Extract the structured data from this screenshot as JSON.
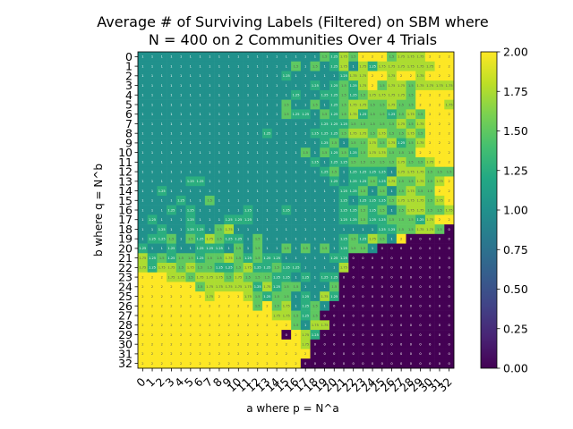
{
  "chart_data": {
    "type": "heatmap",
    "title_line1": "Average # of Surviving Labels (Filtered) on SBM where",
    "title_line2": "N = 400 on 2 Communities Over 4 Trials",
    "xlabel": "a where p = N^a",
    "ylabel": "b where q = N^b",
    "x": [
      "0",
      "1",
      "2",
      "3",
      "4",
      "5",
      "6",
      "7",
      "8",
      "9",
      "10",
      "11",
      "12",
      "13",
      "14",
      "15",
      "16",
      "17",
      "18",
      "19",
      "20",
      "21",
      "22",
      "23",
      "24",
      "25",
      "26",
      "27",
      "28",
      "29",
      "30",
      "31",
      "32"
    ],
    "y": [
      "0",
      "1",
      "2",
      "3",
      "4",
      "5",
      "6",
      "7",
      "8",
      "9",
      "10",
      "11",
      "12",
      "13",
      "14",
      "15",
      "16",
      "17",
      "18",
      "19",
      "20",
      "21",
      "22",
      "23",
      "24",
      "25",
      "26",
      "27",
      "28",
      "29",
      "30",
      "31",
      "32"
    ],
    "colorbar": {
      "colormap": "viridis",
      "range": [
        0.0,
        2.0
      ],
      "ticks": [
        "0.00",
        "0.25",
        "0.50",
        "0.75",
        "1.00",
        "1.25",
        "1.50",
        "1.75",
        "2.00"
      ]
    },
    "cell_annotations": true,
    "values": [
      [
        1,
        1,
        1,
        1,
        1,
        1,
        1,
        1,
        1,
        1,
        1,
        1,
        1,
        1,
        1,
        1,
        1,
        1,
        1,
        1.5,
        1.25,
        1.75,
        1.5,
        2,
        2,
        2,
        1.5,
        1.75,
        1.75,
        1.75,
        2,
        2,
        2
      ],
      [
        1,
        1,
        1,
        1,
        1,
        1,
        1,
        1,
        1,
        1,
        1,
        1,
        1,
        1,
        1,
        1,
        1.5,
        1,
        1.5,
        1,
        1.25,
        1.75,
        1,
        1.75,
        1.25,
        1.75,
        1.75,
        1.75,
        1.75,
        1.75,
        1.75,
        2,
        2
      ],
      [
        1,
        1,
        1,
        1,
        1,
        1,
        1,
        1,
        1,
        1,
        1,
        1,
        1,
        1,
        1,
        1.25,
        1,
        1,
        1,
        1,
        1,
        1.25,
        1.75,
        1.75,
        2,
        2,
        1.75,
        2,
        2,
        1.75,
        2,
        2,
        2
      ],
      [
        1,
        1,
        1,
        1,
        1,
        1,
        1,
        1,
        1,
        1,
        1,
        1,
        1,
        1,
        1,
        1,
        1,
        1,
        1.25,
        1,
        1.25,
        1.5,
        1.25,
        1.75,
        2,
        1.5,
        1.75,
        1.75,
        1.5,
        1.75,
        1.75,
        1.75,
        1.75
      ],
      [
        1,
        1,
        1,
        1,
        1,
        1,
        1,
        1,
        1,
        1,
        1,
        1,
        1,
        1,
        1,
        1,
        1.25,
        1,
        1,
        1.25,
        1.25,
        1.5,
        1.25,
        1.5,
        1.75,
        1.75,
        1.75,
        1.75,
        1.5,
        2,
        2,
        2,
        2
      ],
      [
        1,
        1,
        1,
        1,
        1,
        1,
        1,
        1,
        1,
        1,
        1,
        1,
        1,
        1,
        1,
        1.5,
        1,
        1,
        1.5,
        1,
        1.25,
        1.5,
        1.75,
        1.75,
        1.5,
        1.5,
        1.75,
        1.5,
        1.5,
        2,
        2,
        2,
        1.75
      ],
      [
        1,
        1,
        1,
        1,
        1,
        1,
        1,
        1,
        1,
        1,
        1,
        1,
        1,
        1,
        1,
        1.5,
        1.25,
        1.25,
        1,
        1.5,
        1.25,
        1.5,
        1.75,
        1.25,
        1.5,
        1.5,
        1.25,
        1.5,
        1.75,
        1.5,
        2,
        2,
        2
      ],
      [
        1,
        1,
        1,
        1,
        1,
        1,
        1,
        1,
        1,
        1,
        1,
        1,
        1,
        1,
        1,
        1,
        1,
        1,
        1,
        1.25,
        1.25,
        1.25,
        1.5,
        1.5,
        1.5,
        1.5,
        1.5,
        1.75,
        1.5,
        1.75,
        2,
        2,
        2
      ],
      [
        1,
        1,
        1,
        1,
        1,
        1,
        1,
        1,
        1,
        1,
        1,
        1,
        1,
        1.25,
        1,
        1,
        1,
        1,
        1.25,
        1.25,
        1.25,
        1.5,
        1.75,
        1.75,
        1.5,
        1.75,
        1.5,
        1.5,
        1.75,
        1.5,
        2,
        2,
        2
      ],
      [
        1,
        1,
        1,
        1,
        1,
        1,
        1,
        1,
        1,
        1,
        1,
        1,
        1,
        1,
        1,
        1,
        1,
        1,
        1,
        1.25,
        1.5,
        1,
        1.5,
        1.5,
        1.75,
        1.5,
        1.75,
        1.25,
        1.5,
        1.75,
        2,
        2,
        2
      ],
      [
        1,
        1,
        1,
        1,
        1,
        1,
        1,
        1,
        1,
        1,
        1,
        1,
        1,
        1,
        1,
        1,
        1,
        1.5,
        1,
        1.5,
        1.25,
        1.5,
        1.25,
        1.5,
        1.75,
        1.75,
        1.5,
        1.5,
        1.5,
        2,
        2,
        2,
        2
      ],
      [
        1,
        1,
        1,
        1,
        1,
        1,
        1,
        1,
        1,
        1,
        1,
        1,
        1,
        1,
        1,
        1,
        1,
        1,
        1.25,
        1,
        1.25,
        1.25,
        1.5,
        1.5,
        1.5,
        1.5,
        1.5,
        1.75,
        1.5,
        1.5,
        1.75,
        2,
        2
      ],
      [
        1,
        1,
        1,
        1,
        1,
        1,
        1,
        1,
        1,
        1,
        1,
        1,
        1,
        1,
        1,
        1,
        1,
        1,
        1,
        1.25,
        1.5,
        1,
        1.25,
        1.25,
        1.25,
        1.25,
        1,
        1.75,
        1.75,
        1.75,
        1.5,
        1.5,
        1.5
      ],
      [
        1,
        1,
        1,
        1,
        1,
        1.25,
        1.25,
        1,
        1,
        1,
        1,
        1,
        1,
        1,
        1,
        1,
        1,
        1,
        1,
        1,
        1.25,
        1,
        1.25,
        1.25,
        1.5,
        1.25,
        1.75,
        1.5,
        1.5,
        1.75,
        1.5,
        1.75,
        2
      ],
      [
        1,
        1,
        1.25,
        1,
        1,
        1,
        1,
        1,
        1,
        1,
        1,
        1,
        1,
        1,
        1,
        1,
        1,
        1,
        1,
        1,
        1,
        1.25,
        1.25,
        1.5,
        1,
        1.5,
        1,
        1.5,
        1.75,
        1.5,
        1.5,
        2,
        2
      ],
      [
        1,
        1,
        1,
        1,
        1.25,
        1,
        1,
        1.5,
        1,
        1,
        1,
        1,
        1,
        1,
        1,
        1,
        1,
        1,
        1,
        1,
        1,
        1.25,
        1,
        1.25,
        1.25,
        1.25,
        1.5,
        1.75,
        1.75,
        1.75,
        1.5,
        1.75,
        2
      ],
      [
        1,
        1,
        1,
        1.25,
        1,
        1.25,
        1,
        1,
        1,
        1,
        1,
        1.25,
        1,
        1,
        1,
        1.25,
        1,
        1,
        1,
        1,
        1,
        1.25,
        1.25,
        1.5,
        1.25,
        1.5,
        1,
        1.5,
        1.75,
        1.75,
        1.5,
        1.5,
        1.75
      ],
      [
        1,
        1.25,
        1,
        1,
        1,
        1.25,
        1,
        1,
        1,
        1.25,
        1.25,
        1.25,
        1,
        1,
        1,
        1,
        1,
        1,
        1,
        1,
        1,
        1.25,
        1.25,
        1.5,
        1.25,
        1.25,
        1.5,
        1.5,
        1.5,
        1.25,
        1.75,
        2,
        2
      ],
      [
        1,
        1,
        1.25,
        1,
        1,
        1.25,
        1.25,
        1,
        1.5,
        1.75,
        1,
        1,
        1,
        1,
        1,
        1,
        1,
        1,
        1,
        1,
        1,
        1,
        1,
        1,
        1,
        1.25,
        1.25,
        1.5,
        1.5,
        1.75,
        1.75,
        1.5,
        0
      ],
      [
        1,
        1.25,
        1.25,
        1.5,
        1,
        1.5,
        1.25,
        1.75,
        1.5,
        1.25,
        1.25,
        1,
        1.5,
        1,
        1,
        1,
        1,
        1,
        1,
        1,
        1,
        1.25,
        1.5,
        1.25,
        1.75,
        1.5,
        1,
        2,
        0,
        0,
        0,
        0,
        0
      ],
      [
        1.25,
        1,
        1,
        1.25,
        1,
        1,
        1.25,
        1.25,
        1.25,
        1,
        1.5,
        1,
        1.5,
        1,
        1,
        1.5,
        1,
        1.5,
        1,
        1.5,
        1,
        1.25,
        1.5,
        1.5,
        1,
        0,
        0,
        0,
        0,
        0,
        0,
        0,
        0
      ],
      [
        1.75,
        1.25,
        1.5,
        1.25,
        1.5,
        1.5,
        1.25,
        1.5,
        1.5,
        1.75,
        1.5,
        1.25,
        1.5,
        1.25,
        1.25,
        1,
        1,
        1,
        1,
        1,
        1.25,
        1.25,
        0,
        0,
        0,
        0,
        0,
        0,
        0,
        0,
        0,
        0,
        0
      ],
      [
        1.75,
        1.25,
        1.75,
        1.75,
        1.5,
        1.75,
        1.5,
        1.5,
        1.25,
        1.25,
        1.5,
        1.75,
        1.25,
        1.25,
        1.5,
        1.25,
        1.25,
        1,
        1,
        1,
        1,
        1.75,
        0,
        0,
        0,
        0,
        0,
        0,
        0,
        0,
        0,
        0,
        0
      ],
      [
        2,
        2,
        2,
        1.75,
        1.75,
        1.5,
        1.75,
        1.75,
        1.75,
        1.5,
        1.75,
        1.5,
        1.5,
        1.5,
        1.25,
        1.25,
        1,
        1.25,
        1,
        1.25,
        1.25,
        0,
        0,
        0,
        0,
        0,
        0,
        0,
        0,
        0,
        0,
        0,
        0
      ],
      [
        2,
        2,
        2,
        2,
        2,
        2,
        1.5,
        1.75,
        1.75,
        1.75,
        1.75,
        1.75,
        1.25,
        1.75,
        1.25,
        1.5,
        1.5,
        1,
        1,
        1,
        1.5,
        0,
        0,
        0,
        0,
        0,
        0,
        0,
        0,
        0,
        0,
        0,
        0
      ],
      [
        2,
        2,
        2,
        2,
        2,
        2,
        2,
        1.75,
        2,
        2,
        2,
        1.75,
        1.5,
        1.25,
        1.5,
        1.5,
        1,
        1.25,
        1,
        1.75,
        1.25,
        0,
        0,
        0,
        0,
        0,
        0,
        0,
        0,
        0,
        0,
        0,
        0
      ],
      [
        2,
        2,
        2,
        2,
        2,
        2,
        2,
        2,
        2,
        2,
        2,
        2,
        1.5,
        2,
        1.5,
        1.75,
        1,
        1.25,
        1.5,
        1,
        0,
        0,
        0,
        0,
        0,
        0,
        0,
        0,
        0,
        0,
        0,
        0,
        0
      ],
      [
        2,
        2,
        2,
        2,
        2,
        2,
        2,
        2,
        2,
        2,
        2,
        2,
        2,
        2,
        1.75,
        1.75,
        1.5,
        1.25,
        1.5,
        0,
        0,
        0,
        0,
        0,
        0,
        0,
        0,
        0,
        0,
        0,
        0,
        0,
        0
      ],
      [
        2,
        2,
        2,
        2,
        2,
        2,
        2,
        2,
        2,
        2,
        2,
        2,
        2,
        2,
        2,
        2,
        1.5,
        1,
        1.75,
        1.75,
        0,
        0,
        0,
        0,
        0,
        0,
        0,
        0,
        0,
        0,
        0,
        0,
        0
      ],
      [
        2,
        2,
        2,
        2,
        2,
        2,
        2,
        2,
        2,
        2,
        2,
        2,
        2,
        2,
        2,
        0,
        2,
        1.75,
        1.25,
        0,
        0,
        0,
        0,
        0,
        0,
        0,
        0,
        0,
        0,
        0,
        0,
        0,
        0
      ],
      [
        2,
        2,
        2,
        2,
        2,
        2,
        2,
        2,
        2,
        2,
        2,
        2,
        2,
        2,
        2,
        2,
        2,
        1.75,
        0,
        0,
        0,
        0,
        0,
        0,
        0,
        0,
        0,
        0,
        0,
        0,
        0,
        0,
        0
      ],
      [
        2,
        2,
        2,
        2,
        2,
        2,
        2,
        2,
        2,
        2,
        2,
        2,
        2,
        2,
        2,
        2,
        2,
        2,
        0,
        0,
        0,
        0,
        0,
        0,
        0,
        0,
        0,
        0,
        0,
        0,
        0,
        0,
        0
      ],
      [
        2,
        2,
        2,
        2,
        2,
        2,
        2,
        2,
        2,
        2,
        2,
        2,
        2,
        2,
        2,
        2,
        2,
        0,
        0,
        0,
        0,
        0,
        0,
        0,
        0,
        0,
        0,
        0,
        0,
        0,
        0,
        0,
        0
      ]
    ]
  }
}
